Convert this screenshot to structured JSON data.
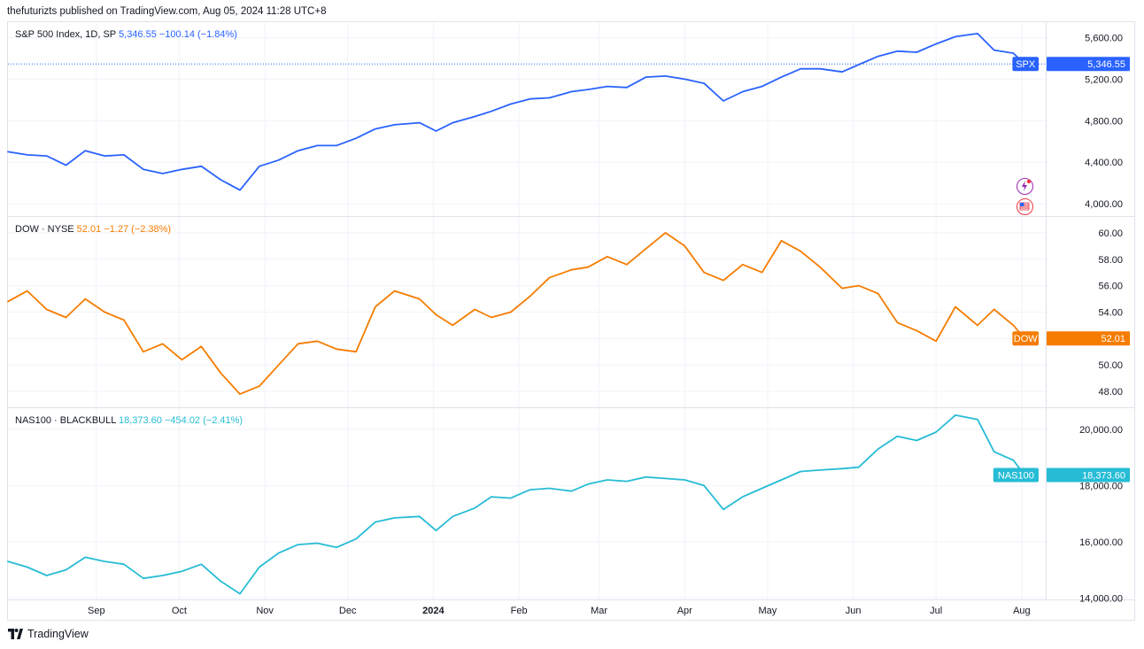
{
  "header": {
    "text": "thefuturizts published on TradingView.com, Aug 05, 2024 11:28 UTC+8"
  },
  "footer": {
    "brand": "TradingView"
  },
  "chart_data": [
    {
      "type": "line",
      "pane": "spx",
      "color": "#2962ff",
      "legend": {
        "name": "S&P 500 Index, 1D, SP",
        "price": "5,346.55",
        "change": "−100.14 (−1.84%)"
      },
      "price_label": {
        "ticker": "SPX",
        "value": "5,346.55"
      },
      "last_value": 5346.55,
      "ylim": [
        3880,
        5750
      ],
      "yticks": [
        {
          "v": 5600,
          "label": "5,600.00"
        },
        {
          "v": 5200,
          "label": "5,200.00"
        },
        {
          "v": 4800,
          "label": "4,800.00"
        },
        {
          "v": 4400,
          "label": "4,400.00"
        },
        {
          "v": 4000,
          "label": "4,000.00"
        }
      ],
      "dotted_line_at_last": true,
      "x": [
        "2023-07-31",
        "2023-08-07",
        "2023-08-14",
        "2023-08-21",
        "2023-08-28",
        "2023-09-04",
        "2023-09-11",
        "2023-09-18",
        "2023-09-25",
        "2023-10-02",
        "2023-10-09",
        "2023-10-16",
        "2023-10-23",
        "2023-10-30",
        "2023-11-06",
        "2023-11-13",
        "2023-11-20",
        "2023-11-27",
        "2023-12-04",
        "2023-12-11",
        "2023-12-18",
        "2023-12-27",
        "2024-01-02",
        "2024-01-08",
        "2024-01-16",
        "2024-01-22",
        "2024-01-29",
        "2024-02-05",
        "2024-02-12",
        "2024-02-20",
        "2024-02-26",
        "2024-03-04",
        "2024-03-11",
        "2024-03-18",
        "2024-03-25",
        "2024-04-01",
        "2024-04-08",
        "2024-04-15",
        "2024-04-22",
        "2024-04-29",
        "2024-05-06",
        "2024-05-13",
        "2024-05-20",
        "2024-05-28",
        "2024-06-03",
        "2024-06-10",
        "2024-06-17",
        "2024-06-24",
        "2024-07-01",
        "2024-07-08",
        "2024-07-16",
        "2024-07-22",
        "2024-07-29",
        "2024-08-02"
      ],
      "values": [
        4500,
        4470,
        4460,
        4370,
        4510,
        4460,
        4470,
        4330,
        4290,
        4330,
        4360,
        4230,
        4130,
        4360,
        4420,
        4510,
        4560,
        4560,
        4630,
        4720,
        4760,
        4780,
        4700,
        4780,
        4840,
        4890,
        4960,
        5010,
        5020,
        5080,
        5100,
        5130,
        5120,
        5220,
        5230,
        5200,
        5160,
        4990,
        5080,
        5130,
        5220,
        5300,
        5300,
        5270,
        5340,
        5420,
        5470,
        5460,
        5540,
        5610,
        5640,
        5480,
        5450,
        5346.55
      ]
    },
    {
      "type": "line",
      "pane": "dow",
      "color": "#f57c00",
      "legend": {
        "name": "DOW · NYSE",
        "price": "52.01",
        "change": "−1.27 (−2.38%)"
      },
      "price_label": {
        "ticker": "DOW",
        "value": "52.01"
      },
      "last_value": 52.01,
      "ylim": [
        46.8,
        61.2
      ],
      "yticks": [
        {
          "v": 60,
          "label": "60.00"
        },
        {
          "v": 58,
          "label": "58.00"
        },
        {
          "v": 56,
          "label": "56.00"
        },
        {
          "v": 54,
          "label": "54.00"
        },
        {
          "v": 52,
          "label": "52.00"
        },
        {
          "v": 50,
          "label": "50.00"
        },
        {
          "v": 48,
          "label": "48.00"
        }
      ],
      "x": [
        "2023-07-31",
        "2023-08-07",
        "2023-08-14",
        "2023-08-21",
        "2023-08-28",
        "2023-09-04",
        "2023-09-11",
        "2023-09-18",
        "2023-09-25",
        "2023-10-02",
        "2023-10-09",
        "2023-10-16",
        "2023-10-23",
        "2023-10-30",
        "2023-11-06",
        "2023-11-13",
        "2023-11-20",
        "2023-11-27",
        "2023-12-04",
        "2023-12-11",
        "2023-12-18",
        "2023-12-27",
        "2024-01-02",
        "2024-01-08",
        "2024-01-16",
        "2024-01-22",
        "2024-01-29",
        "2024-02-05",
        "2024-02-12",
        "2024-02-20",
        "2024-02-26",
        "2024-03-04",
        "2024-03-11",
        "2024-03-18",
        "2024-03-25",
        "2024-04-01",
        "2024-04-08",
        "2024-04-15",
        "2024-04-22",
        "2024-04-29",
        "2024-05-06",
        "2024-05-13",
        "2024-05-20",
        "2024-05-28",
        "2024-06-03",
        "2024-06-10",
        "2024-06-17",
        "2024-06-24",
        "2024-07-01",
        "2024-07-08",
        "2024-07-16",
        "2024-07-22",
        "2024-07-29",
        "2024-08-02"
      ],
      "values": [
        54.8,
        55.6,
        54.2,
        53.6,
        55.0,
        54.0,
        53.4,
        51.0,
        51.6,
        50.4,
        51.4,
        49.4,
        47.8,
        48.4,
        50.0,
        51.6,
        51.8,
        51.2,
        51.0,
        54.4,
        55.6,
        55.0,
        53.8,
        53.0,
        54.2,
        53.6,
        54.0,
        55.2,
        56.6,
        57.2,
        57.4,
        58.2,
        57.6,
        58.8,
        60.0,
        59.0,
        57.0,
        56.4,
        57.6,
        57.0,
        59.4,
        58.6,
        57.4,
        55.8,
        56.0,
        55.4,
        53.2,
        52.6,
        51.8,
        54.4,
        53.0,
        54.2,
        53.0,
        52.01
      ]
    },
    {
      "type": "line",
      "pane": "nas",
      "color": "#26bcd5",
      "legend": {
        "name": "NAS100 · BLACKBULL",
        "price": "18,373.60",
        "change": "−454.02 (−2.41%)"
      },
      "price_label": {
        "ticker": "NAS100",
        "value": "18,373.60"
      },
      "last_value": 18373.6,
      "ylim": [
        13950,
        20750
      ],
      "yticks": [
        {
          "v": 20000,
          "label": "20,000.00"
        },
        {
          "v": 18000,
          "label": "18,000.00"
        },
        {
          "v": 16000,
          "label": "16,000.00"
        },
        {
          "v": 14000,
          "label": "14,000.00"
        }
      ],
      "x": [
        "2023-07-31",
        "2023-08-07",
        "2023-08-14",
        "2023-08-21",
        "2023-08-28",
        "2023-09-04",
        "2023-09-11",
        "2023-09-18",
        "2023-09-25",
        "2023-10-02",
        "2023-10-09",
        "2023-10-16",
        "2023-10-23",
        "2023-10-30",
        "2023-11-06",
        "2023-11-13",
        "2023-11-20",
        "2023-11-27",
        "2023-12-04",
        "2023-12-11",
        "2023-12-18",
        "2023-12-27",
        "2024-01-02",
        "2024-01-08",
        "2024-01-16",
        "2024-01-22",
        "2024-01-29",
        "2024-02-05",
        "2024-02-12",
        "2024-02-20",
        "2024-02-26",
        "2024-03-04",
        "2024-03-11",
        "2024-03-18",
        "2024-03-25",
        "2024-04-01",
        "2024-04-08",
        "2024-04-15",
        "2024-04-22",
        "2024-04-29",
        "2024-05-06",
        "2024-05-13",
        "2024-05-20",
        "2024-05-28",
        "2024-06-03",
        "2024-06-10",
        "2024-06-17",
        "2024-06-24",
        "2024-07-01",
        "2024-07-08",
        "2024-07-16",
        "2024-07-22",
        "2024-07-29",
        "2024-08-02"
      ],
      "values": [
        15300,
        15100,
        14800,
        15000,
        15450,
        15300,
        15200,
        14700,
        14800,
        14950,
        15200,
        14600,
        14150,
        15100,
        15600,
        15900,
        15950,
        15800,
        16100,
        16700,
        16850,
        16900,
        16400,
        16900,
        17200,
        17600,
        17550,
        17850,
        17900,
        17800,
        18050,
        18200,
        18150,
        18300,
        18250,
        18200,
        18000,
        17150,
        17600,
        17900,
        18200,
        18500,
        18550,
        18600,
        18650,
        19300,
        19750,
        19600,
        19900,
        20500,
        20350,
        19200,
        18900,
        18373.6
      ]
    }
  ],
  "time_axis": {
    "ticks": [
      {
        "date": "2023-09-01",
        "label": "Sep",
        "bold": false
      },
      {
        "date": "2023-10-01",
        "label": "Oct",
        "bold": false
      },
      {
        "date": "2023-11-01",
        "label": "Nov",
        "bold": false
      },
      {
        "date": "2023-12-01",
        "label": "Dec",
        "bold": false
      },
      {
        "date": "2024-01-01",
        "label": "2024",
        "bold": true
      },
      {
        "date": "2024-02-01",
        "label": "Feb",
        "bold": false
      },
      {
        "date": "2024-03-01",
        "label": "Mar",
        "bold": false
      },
      {
        "date": "2024-04-01",
        "label": "Apr",
        "bold": false
      },
      {
        "date": "2024-05-01",
        "label": "May",
        "bold": false
      },
      {
        "date": "2024-06-01",
        "label": "Jun",
        "bold": false
      },
      {
        "date": "2024-07-01",
        "label": "Jul",
        "bold": false
      },
      {
        "date": "2024-08-01",
        "label": "Aug",
        "bold": false
      }
    ]
  },
  "colors": {
    "grid": "#f0f3fa",
    "separator": "#e0e3eb",
    "axis_text": "#131722",
    "badge_purple": "#9c27b0",
    "badge_red": "#f23645"
  },
  "icons": {
    "events": [
      "lightning-event-icon",
      "us-flag-event-icon"
    ]
  }
}
